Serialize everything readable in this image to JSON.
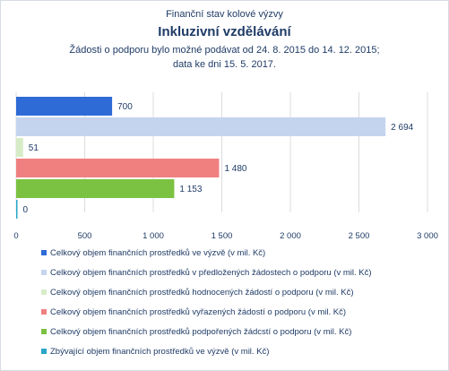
{
  "chart_data": {
    "type": "bar",
    "orientation": "horizontal",
    "title_top": "Finanční stav kolové výzvy",
    "title": "Inkluzivní vzdělávání",
    "subtitle_line1": "Žádosti o podporu bylo možné  podávat od 24. 8. 2015 do 14. 12. 2015;",
    "subtitle_line2": "data ke dni 15. 5. 2017.",
    "xlim": [
      0,
      3000
    ],
    "xticks": [
      0,
      500,
      1000,
      1500,
      2000,
      2500,
      3000
    ],
    "xtick_labels": [
      "0",
      "500",
      "1 000",
      "1 500",
      "2 000",
      "2 500",
      "3 000"
    ],
    "grid": true,
    "legend_position": "bottom",
    "series": [
      {
        "name": "Celkový objem finančních prostředků ve výzvě (v mil. Kč)",
        "value": 700,
        "label": "700",
        "color": "#2e6bd6"
      },
      {
        "name": "Celkový objem finančních prostředků v předložených žádostech o podporu (v mil. Kč)",
        "value": 2694,
        "label": "2 694",
        "color": "#c5d4ee"
      },
      {
        "name": "Celkový objem finančních prostředků hodnocených žádostí o podporu (v mil. Kč)",
        "value": 51,
        "label": "51",
        "color": "#d6ecc6"
      },
      {
        "name": "Celkový objem finančních prostředků vyřazených žádostí o podporu (v mil. Kč)",
        "value": 1480,
        "label": "1 480",
        "color": "#f08080"
      },
      {
        "name": "Celkový objem finančních prostředků podpořených žádcstí o podporu (v mil. Kč)",
        "value": 1153,
        "label": "1 153",
        "color": "#7cc242"
      },
      {
        "name": "Zbývající objem finančních prostředků ve výzvě (v mil. Kč)",
        "value": 0,
        "label": "0",
        "color": "#2aa6c8"
      }
    ]
  }
}
